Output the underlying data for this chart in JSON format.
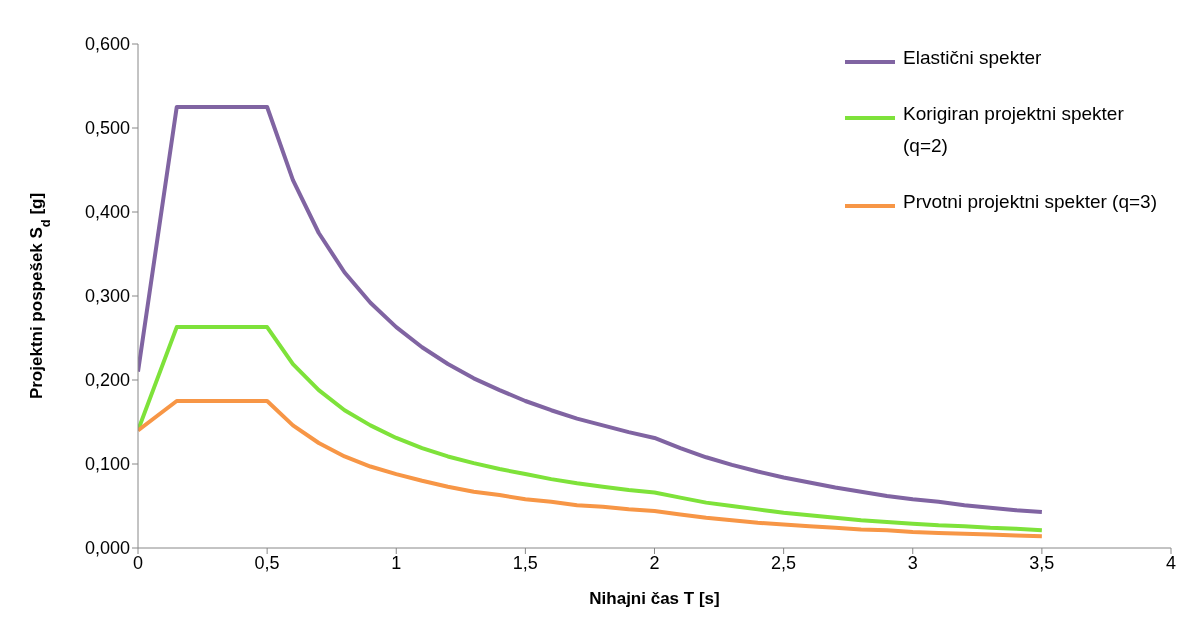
{
  "chart_data": {
    "type": "line",
    "xlabel": "Nihajni čas T [s]",
    "ylabel": "Projektni pospešek S$_{d}$ [g]",
    "x": [
      0,
      0.15,
      0.5,
      0.6,
      0.7,
      0.8,
      0.9,
      1,
      1.1,
      1.2,
      1.3,
      1.4,
      1.5,
      1.6,
      1.7,
      1.8,
      1.9,
      2,
      2.1,
      2.2,
      2.3,
      2.4,
      2.5,
      2.6,
      2.7,
      2.8,
      2.9,
      3,
      3.1,
      3.2,
      3.3,
      3.4,
      3.5
    ],
    "series": [
      {
        "name": "Elastični spekter",
        "color": "#8064a2",
        "values": [
          0.21,
          0.525,
          0.525,
          0.438,
          0.375,
          0.328,
          0.292,
          0.263,
          0.239,
          0.219,
          0.202,
          0.188,
          0.175,
          0.164,
          0.154,
          0.146,
          0.138,
          0.131,
          0.119,
          0.108,
          0.099,
          0.091,
          0.084,
          0.078,
          0.072,
          0.067,
          0.062,
          0.058,
          0.055,
          0.051,
          0.048,
          0.045,
          0.043
        ]
      },
      {
        "name": "Korigiran projektni spekter (q=2)",
        "color": "#7ee23a",
        "values": [
          0.14,
          0.263,
          0.263,
          0.219,
          0.188,
          0.164,
          0.146,
          0.131,
          0.119,
          0.109,
          0.101,
          0.094,
          0.088,
          0.082,
          0.077,
          0.073,
          0.069,
          0.066,
          0.06,
          0.054,
          0.05,
          0.046,
          0.042,
          0.039,
          0.036,
          0.033,
          0.031,
          0.029,
          0.027,
          0.026,
          0.024,
          0.023,
          0.021
        ]
      },
      {
        "name": "Prvotni projektni spekter (q=3)",
        "color": "#f79646",
        "values": [
          0.14,
          0.175,
          0.175,
          0.146,
          0.125,
          0.109,
          0.097,
          0.088,
          0.08,
          0.073,
          0.067,
          0.063,
          0.058,
          0.055,
          0.051,
          0.049,
          0.046,
          0.044,
          0.04,
          0.036,
          0.033,
          0.03,
          0.028,
          0.026,
          0.024,
          0.022,
          0.021,
          0.019,
          0.018,
          0.017,
          0.016,
          0.015,
          0.014
        ]
      }
    ],
    "xlim": [
      0,
      4
    ],
    "xticks": [
      {
        "value": 0,
        "label": "0"
      },
      {
        "value": 0.5,
        "label": "0,5"
      },
      {
        "value": 1,
        "label": "1"
      },
      {
        "value": 1.5,
        "label": "1,5"
      },
      {
        "value": 2,
        "label": "2"
      },
      {
        "value": 2.5,
        "label": "2,5"
      },
      {
        "value": 3,
        "label": "3"
      },
      {
        "value": 3.5,
        "label": "3,5"
      },
      {
        "value": 4,
        "label": "4"
      }
    ],
    "ylim": [
      0,
      0.6
    ],
    "yticks": [
      {
        "value": 0,
        "label": "0,000"
      },
      {
        "value": 0.1,
        "label": "0,100"
      },
      {
        "value": 0.2,
        "label": "0,200"
      },
      {
        "value": 0.3,
        "label": "0,300"
      },
      {
        "value": 0.4,
        "label": "0,400"
      },
      {
        "value": 0.5,
        "label": "0,500"
      },
      {
        "value": 0.6,
        "label": "0,600"
      }
    ],
    "grid": false,
    "legend": "top right",
    "marker": "none",
    "line_style": "solid"
  }
}
